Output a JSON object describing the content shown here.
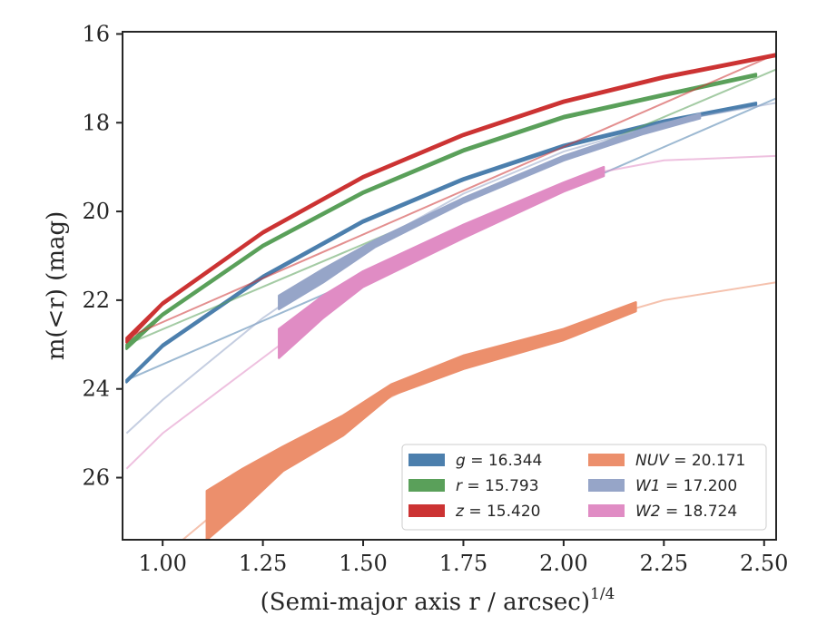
{
  "chart_data": {
    "type": "area",
    "title": "",
    "xlabel": "(Semi-major axis r / arcsec)",
    "xlabel_exponent": "1/4",
    "ylabel": "m(<r) (mag)",
    "xlim": [
      0.9,
      2.53
    ],
    "ylim": [
      27.4,
      15.95
    ],
    "y_inverted": true,
    "grid": false,
    "legend_position": "lower-right",
    "x_ticks": [
      "1.00",
      "1.25",
      "1.50",
      "1.75",
      "2.00",
      "2.25",
      "2.50"
    ],
    "y_ticks": [
      "16",
      "18",
      "20",
      "22",
      "24",
      "26"
    ],
    "series": [
      {
        "name": "g = 16.344",
        "label_var": "g",
        "label_val": "16.344",
        "color": "#4c7fad",
        "faint": [
          [
            0.91,
            23.8
          ],
          [
            2.53,
            17.45
          ]
        ],
        "band": [
          [
            0.91,
            23.8,
            23.85
          ],
          [
            1.0,
            23.0,
            23.05
          ],
          [
            1.25,
            21.45,
            21.5
          ],
          [
            1.5,
            20.2,
            20.25
          ],
          [
            1.75,
            19.25,
            19.3
          ],
          [
            2.0,
            18.5,
            18.55
          ],
          [
            2.25,
            17.95,
            18.0
          ],
          [
            2.48,
            17.55,
            17.6
          ]
        ]
      },
      {
        "name": "r = 15.793",
        "label_var": "r",
        "label_val": "15.793",
        "color": "#5aa05a",
        "faint": [
          [
            0.91,
            23.0
          ],
          [
            2.53,
            16.8
          ]
        ],
        "band": [
          [
            0.91,
            23.0,
            23.1
          ],
          [
            1.0,
            22.3,
            22.35
          ],
          [
            1.25,
            20.75,
            20.8
          ],
          [
            1.5,
            19.55,
            19.6
          ],
          [
            1.75,
            18.6,
            18.65
          ],
          [
            2.0,
            17.85,
            17.9
          ],
          [
            2.25,
            17.35,
            17.4
          ],
          [
            2.48,
            16.9,
            16.95
          ]
        ]
      },
      {
        "name": "z = 15.420",
        "label_var": "z",
        "label_val": "15.420",
        "color": "#cc3333",
        "faint": [
          [
            0.91,
            22.85
          ],
          [
            2.53,
            16.45
          ]
        ],
        "band": [
          [
            0.91,
            22.85,
            22.95
          ],
          [
            1.0,
            22.05,
            22.1
          ],
          [
            1.25,
            20.45,
            20.5
          ],
          [
            1.5,
            19.2,
            19.25
          ],
          [
            1.75,
            18.25,
            18.3
          ],
          [
            2.0,
            17.5,
            17.55
          ],
          [
            2.25,
            16.95,
            17.0
          ],
          [
            2.53,
            16.45,
            16.5
          ]
        ]
      },
      {
        "name": "NUV = 20.171",
        "label_var": "NUV",
        "label_val": "20.171",
        "color": "#ec8f6c",
        "faint": [
          [
            1.05,
            27.4
          ],
          [
            1.25,
            25.9
          ],
          [
            1.5,
            24.5
          ],
          [
            1.75,
            23.35
          ],
          [
            2.0,
            22.65
          ],
          [
            2.25,
            22.0
          ],
          [
            2.53,
            21.6
          ]
        ],
        "band": [
          [
            1.11,
            26.3,
            27.4
          ],
          [
            1.2,
            25.8,
            26.7
          ],
          [
            1.3,
            25.3,
            25.85
          ],
          [
            1.45,
            24.6,
            25.05
          ],
          [
            1.57,
            23.9,
            24.15
          ],
          [
            1.75,
            23.25,
            23.55
          ],
          [
            2.0,
            22.65,
            22.9
          ],
          [
            2.18,
            22.05,
            22.25
          ]
        ]
      },
      {
        "name": "W1 = 17.200",
        "label_var": "W1",
        "label_val": "17.200",
        "color": "#96a5c8",
        "faint": [
          [
            0.91,
            25.0
          ],
          [
            1.0,
            24.25
          ],
          [
            1.25,
            22.4
          ],
          [
            1.5,
            20.85
          ],
          [
            1.75,
            19.6
          ],
          [
            2.0,
            18.65
          ],
          [
            2.25,
            18.0
          ],
          [
            2.53,
            17.55
          ]
        ],
        "band": [
          [
            1.29,
            21.9,
            22.2
          ],
          [
            1.4,
            21.3,
            21.6
          ],
          [
            1.53,
            20.65,
            20.8
          ],
          [
            1.75,
            19.7,
            19.8
          ],
          [
            2.0,
            18.75,
            18.85
          ],
          [
            2.2,
            18.15,
            18.25
          ],
          [
            2.34,
            17.8,
            17.9
          ]
        ]
      },
      {
        "name": "W2 = 18.724",
        "label_var": "W2",
        "label_val": "18.724",
        "color": "#e08cc4",
        "faint": [
          [
            0.91,
            25.8
          ],
          [
            1.0,
            25.0
          ],
          [
            1.25,
            23.3
          ],
          [
            1.5,
            21.6
          ],
          [
            1.75,
            20.4
          ],
          [
            2.0,
            19.45
          ],
          [
            2.1,
            19.1
          ],
          [
            2.25,
            18.85
          ],
          [
            2.53,
            18.75
          ]
        ],
        "band": [
          [
            1.29,
            22.65,
            23.3
          ],
          [
            1.4,
            21.9,
            22.4
          ],
          [
            1.5,
            21.35,
            21.7
          ],
          [
            1.75,
            20.3,
            20.6
          ],
          [
            2.0,
            19.35,
            19.55
          ],
          [
            2.1,
            19.0,
            19.2
          ]
        ]
      }
    ]
  }
}
